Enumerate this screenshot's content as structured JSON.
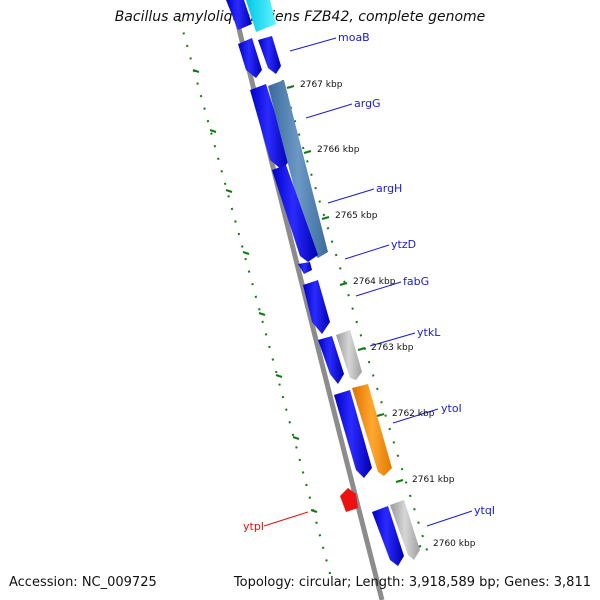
{
  "title": "Bacillus amyloliquefaciens FZB42, complete genome",
  "footer": {
    "accession": "Accession: NC_009725",
    "summary": "Topology: circular; Length: 3,918,589 bp; Genes: 3,811"
  },
  "colors": {
    "backbone": "#8c8c8c",
    "tick": "#127a12",
    "forward_gene": "#1010f0",
    "reverse_gene_label": "#e01010",
    "label_line_forward": "#1a1ad0",
    "label_line_reverse": "#e01010",
    "steel": "#4f7fae",
    "gray": "#b4b4b4",
    "orange": "#ff8c00",
    "cyan": "#00e5ff",
    "red": "#ee1111"
  },
  "axis_labels": [
    "2767 kbp",
    "2766 kbp",
    "2765 kbp",
    "2764 kbp",
    "2763 kbp",
    "2762 kbp",
    "2761 kbp",
    "2760 kbp"
  ],
  "gene_labels": [
    {
      "name": "moaB",
      "color_key": "forward_gene"
    },
    {
      "name": "argG",
      "color_key": "forward_gene"
    },
    {
      "name": "argH",
      "color_key": "forward_gene"
    },
    {
      "name": "ytzD",
      "color_key": "forward_gene"
    },
    {
      "name": "fabG",
      "color_key": "forward_gene"
    },
    {
      "name": "ytkL",
      "color_key": "forward_gene"
    },
    {
      "name": "ytoI",
      "color_key": "forward_gene"
    },
    {
      "name": "ytqI",
      "color_key": "forward_gene"
    },
    {
      "name": "ytpI",
      "color_key": "reverse_gene_label"
    }
  ]
}
